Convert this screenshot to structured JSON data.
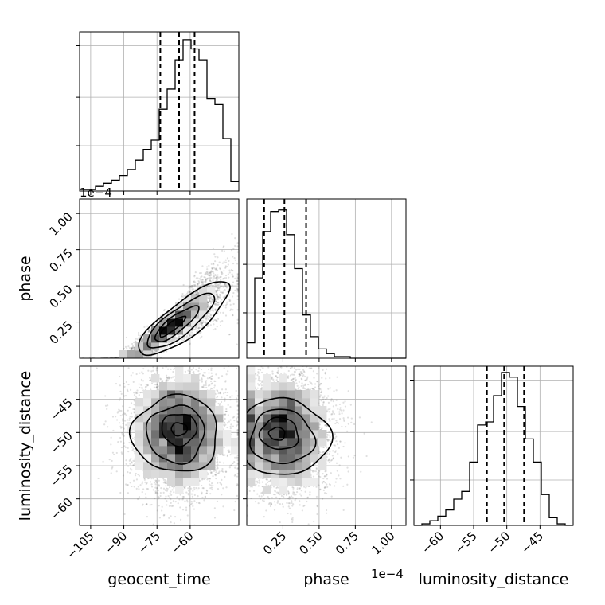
{
  "chart_data": {
    "type": "corner",
    "parameters": [
      "geocent_time",
      "phase",
      "luminosity_distance"
    ],
    "offset_labels": {
      "geocent_time": "1e−4",
      "phase": "1e−4"
    },
    "axes": {
      "geocent_time": {
        "range": [
          -110,
          -38
        ],
        "ticks": [
          -105,
          -90,
          -75,
          -60
        ],
        "tick_labels": [
          "−105",
          "−90",
          "−75",
          "−60"
        ],
        "label": "geocent_time"
      },
      "phase": {
        "range": [
          0.0,
          1.1
        ],
        "ticks": [
          0.25,
          0.5,
          0.75,
          1.0
        ],
        "tick_labels": [
          "0.25",
          "0.50",
          "0.75",
          "1.00"
        ],
        "label": "phase"
      },
      "luminosity_distance": {
        "range": [
          -64,
          -40
        ],
        "ticks": [
          -60,
          -55,
          -50,
          -45
        ],
        "tick_labels": [
          "−60",
          "−55",
          "−50",
          "−45"
        ],
        "label": "luminosity_distance"
      }
    },
    "histograms": [
      {
        "parameter": "geocent_time",
        "bin_edges": [
          -110,
          -106.4,
          -102.8,
          -99.2,
          -95.6,
          -92,
          -88.4,
          -84.8,
          -81.2,
          -77.6,
          -74,
          -70.4,
          -66.8,
          -63.2,
          -59.6,
          -56,
          -52.4,
          -48.8,
          -45.2,
          -41.6,
          -38
        ],
        "counts": [
          0.01,
          0.01,
          0.03,
          0.05,
          0.07,
          0.1,
          0.14,
          0.2,
          0.27,
          0.33,
          0.53,
          0.66,
          0.85,
          0.98,
          0.92,
          0.85,
          0.6,
          0.56,
          0.34,
          0.06
        ],
        "quantiles": [
          -73.5,
          -65,
          -58
        ]
      },
      {
        "parameter": "phase",
        "bin_edges": [
          0,
          0.055,
          0.11,
          0.165,
          0.22,
          0.275,
          0.33,
          0.385,
          0.44,
          0.495,
          0.55,
          0.605,
          0.66,
          0.715,
          0.77,
          0.825,
          0.88,
          0.935,
          0.99,
          1.045,
          1.1
        ],
        "counts": [
          0.1,
          0.52,
          0.82,
          0.95,
          0.96,
          0.8,
          0.58,
          0.28,
          0.14,
          0.06,
          0.03,
          0.01,
          0.01,
          0,
          0,
          0,
          0,
          0,
          0,
          0
        ],
        "quantiles": [
          0.12,
          0.26,
          0.41
        ]
      },
      {
        "parameter": "luminosity_distance",
        "bin_edges": [
          -64,
          -62.8,
          -61.6,
          -60.4,
          -59.2,
          -58,
          -56.8,
          -55.6,
          -54.4,
          -53.2,
          -52,
          -50.8,
          -49.6,
          -48.4,
          -47.2,
          -46,
          -44.8,
          -43.6,
          -42.4,
          -41.2,
          -40
        ],
        "counts": [
          0,
          0.01,
          0.03,
          0.06,
          0.1,
          0.17,
          0.22,
          0.41,
          0.65,
          0.67,
          0.84,
          0.99,
          0.96,
          0.77,
          0.56,
          0.41,
          0.2,
          0.05,
          0.01,
          0
        ],
        "quantiles": [
          -53,
          -50.4,
          -47.4
        ]
      }
    ],
    "pairs": [
      {
        "x": "geocent_time",
        "y": "phase",
        "mean": [
          -67,
          0.24
        ],
        "principal_axis_slope": 0.0118,
        "spread_major": 11,
        "spread_minor": 0.045,
        "mode": [
          -68,
          0.22
        ]
      },
      {
        "x": "geocent_time",
        "y": "luminosity_distance",
        "mean": [
          -65,
          -50
        ],
        "spread_x": 11,
        "spread_y": 4.6,
        "mode": [
          -65,
          -49.5
        ]
      },
      {
        "x": "phase",
        "y": "luminosity_distance",
        "mean": [
          0.25,
          -50
        ],
        "spread_x": 0.14,
        "spread_y": 4.6,
        "mode": [
          0.21,
          -50.2
        ]
      }
    ],
    "grid": true,
    "contour_levels_sigma": [
      0.5,
      1.0,
      1.5,
      2.0
    ]
  }
}
